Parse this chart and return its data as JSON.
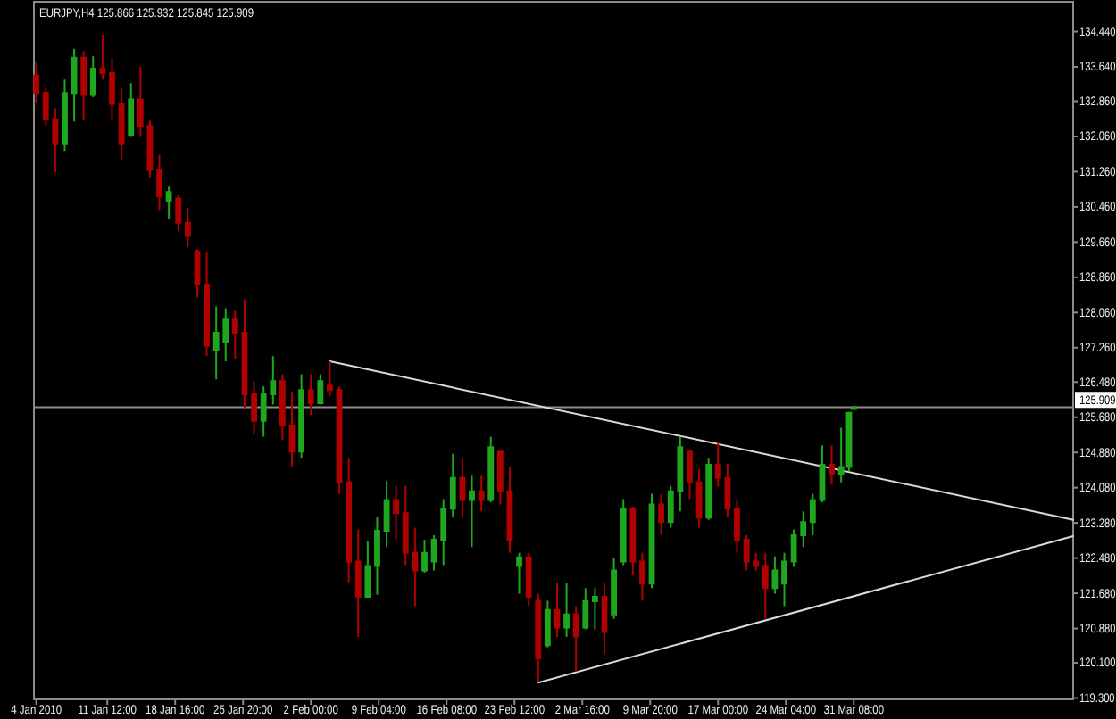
{
  "chart_data": {
    "type": "candlestick",
    "title": "EURJPY,H4 125.866 125.932 125.845 125.909",
    "x": [
      "2010-01-04",
      "2010-01-05",
      "2010-01-06",
      "2010-01-07",
      "2010-01-08",
      "2010-01-09",
      "2010-01-10",
      "2010-01-11",
      "2010-01-12",
      "2010-01-13",
      "2010-01-14",
      "2010-01-15",
      "2010-01-16",
      "2010-01-17",
      "2010-01-18",
      "2010-01-19",
      "2010-01-20",
      "2010-01-21",
      "2010-01-22",
      "2010-01-23",
      "2010-01-24",
      "2010-01-25",
      "2010-01-26",
      "2010-01-27",
      "2010-01-28",
      "2010-01-29",
      "2010-01-30",
      "2010-01-31",
      "2010-02-01",
      "2010-02-02",
      "2010-02-03",
      "2010-02-04",
      "2010-02-05",
      "2010-02-06",
      "2010-02-07",
      "2010-02-08",
      "2010-02-09",
      "2010-02-10",
      "2010-02-11",
      "2010-02-12",
      "2010-02-13",
      "2010-02-14",
      "2010-02-15",
      "2010-02-16",
      "2010-02-17",
      "2010-02-18",
      "2010-02-19",
      "2010-02-20",
      "2010-02-21",
      "2010-02-22",
      "2010-02-23",
      "2010-02-24",
      "2010-02-25",
      "2010-02-26",
      "2010-02-27",
      "2010-02-28",
      "2010-03-01",
      "2010-03-02",
      "2010-03-03",
      "2010-03-04",
      "2010-03-05",
      "2010-03-06",
      "2010-03-07",
      "2010-03-08",
      "2010-03-09",
      "2010-03-10",
      "2010-03-11",
      "2010-03-12",
      "2010-03-13",
      "2010-03-14",
      "2010-03-15",
      "2010-03-16",
      "2010-03-17",
      "2010-03-18",
      "2010-03-19",
      "2010-03-20",
      "2010-03-21",
      "2010-03-22",
      "2010-03-23",
      "2010-03-24",
      "2010-03-25",
      "2010-03-26",
      "2010-03-27",
      "2010-03-28",
      "2010-03-29",
      "2010-03-30",
      "2010-03-30T20:00",
      "2010-03-31T08:00"
    ],
    "ohlc": [
      [
        133.45,
        133.76,
        132.83,
        133.05
      ],
      [
        133.05,
        133.15,
        132.3,
        132.45
      ],
      [
        132.45,
        132.7,
        131.25,
        131.9
      ],
      [
        131.9,
        133.35,
        131.73,
        133.05
      ],
      [
        133.05,
        134.05,
        132.4,
        133.85
      ],
      [
        133.85,
        134.0,
        132.42,
        133.0
      ],
      [
        133.0,
        133.88,
        132.95,
        133.6
      ],
      [
        133.6,
        134.37,
        133.35,
        133.5
      ],
      [
        133.5,
        133.84,
        132.46,
        132.8
      ],
      [
        132.8,
        133.15,
        131.53,
        131.9
      ],
      [
        132.1,
        133.27,
        132.05,
        132.9
      ],
      [
        132.9,
        133.64,
        132.05,
        132.3
      ],
      [
        132.3,
        132.42,
        131.12,
        131.3
      ],
      [
        131.3,
        131.65,
        130.39,
        130.7
      ],
      [
        130.6,
        130.92,
        130.19,
        130.8
      ],
      [
        130.65,
        130.72,
        129.91,
        130.1
      ],
      [
        130.1,
        130.43,
        129.55,
        129.8
      ],
      [
        129.45,
        129.5,
        128.4,
        128.7
      ],
      [
        128.7,
        129.43,
        127.07,
        127.3
      ],
      [
        127.2,
        128.2,
        126.54,
        127.6
      ],
      [
        127.4,
        128.16,
        126.95,
        127.9
      ],
      [
        127.9,
        128.1,
        127.0,
        127.6
      ],
      [
        127.6,
        128.36,
        125.9,
        126.2
      ],
      [
        126.2,
        126.5,
        125.3,
        125.6
      ],
      [
        125.6,
        126.38,
        125.24,
        126.2
      ],
      [
        126.2,
        127.07,
        125.97,
        126.5
      ],
      [
        126.5,
        126.66,
        125.16,
        125.5
      ],
      [
        125.5,
        126.26,
        124.55,
        124.9
      ],
      [
        124.9,
        126.66,
        124.76,
        126.3
      ],
      [
        126.3,
        126.66,
        125.73,
        126.0
      ],
      [
        126.0,
        126.66,
        125.97,
        126.5
      ],
      [
        126.4,
        126.95,
        126.15,
        126.3
      ],
      [
        126.3,
        126.38,
        123.93,
        124.2
      ],
      [
        124.2,
        124.76,
        121.93,
        122.4
      ],
      [
        122.4,
        123.13,
        120.69,
        121.6
      ],
      [
        121.6,
        122.88,
        121.59,
        122.3
      ],
      [
        122.3,
        123.41,
        121.65,
        123.1
      ],
      [
        123.1,
        124.23,
        122.73,
        123.8
      ],
      [
        123.8,
        124.12,
        122.9,
        123.5
      ],
      [
        123.5,
        124.12,
        122.32,
        122.6
      ],
      [
        122.6,
        123.17,
        121.39,
        122.2
      ],
      [
        122.2,
        122.9,
        122.15,
        122.6
      ],
      [
        122.4,
        123.0,
        122.2,
        122.9
      ],
      [
        122.9,
        123.82,
        122.32,
        123.6
      ],
      [
        123.6,
        124.85,
        123.4,
        124.3
      ],
      [
        124.3,
        124.76,
        123.41,
        123.8
      ],
      [
        123.8,
        124.35,
        122.73,
        124.0
      ],
      [
        124.0,
        124.35,
        123.54,
        123.8
      ],
      [
        123.8,
        125.24,
        123.75,
        125.0
      ],
      [
        124.9,
        124.92,
        123.7,
        124.0
      ],
      [
        124.0,
        124.55,
        122.6,
        122.9
      ],
      [
        122.3,
        122.6,
        121.67,
        122.5
      ],
      [
        122.5,
        122.6,
        121.39,
        121.6
      ],
      [
        121.5,
        121.67,
        119.65,
        120.2
      ],
      [
        120.5,
        121.51,
        120.45,
        121.3
      ],
      [
        121.3,
        121.91,
        120.69,
        120.9
      ],
      [
        120.9,
        121.91,
        120.69,
        121.2
      ],
      [
        121.2,
        121.39,
        119.9,
        120.7
      ],
      [
        120.9,
        121.8,
        120.86,
        121.5
      ],
      [
        121.5,
        121.8,
        120.86,
        121.6
      ],
      [
        121.6,
        121.91,
        120.3,
        120.8
      ],
      [
        121.2,
        122.48,
        121.1,
        122.2
      ],
      [
        122.4,
        123.82,
        122.32,
        123.6
      ],
      [
        123.6,
        123.65,
        122.08,
        122.4
      ],
      [
        122.4,
        122.6,
        121.51,
        121.9
      ],
      [
        121.9,
        123.94,
        121.8,
        123.7
      ],
      [
        123.7,
        123.94,
        123.0,
        123.3
      ],
      [
        123.3,
        124.12,
        123.17,
        124.0
      ],
      [
        124.0,
        125.24,
        123.54,
        125.0
      ],
      [
        124.9,
        124.92,
        123.82,
        124.2
      ],
      [
        124.2,
        124.51,
        123.17,
        123.4
      ],
      [
        123.4,
        124.76,
        123.35,
        124.6
      ],
      [
        124.6,
        125.12,
        124.1,
        124.3
      ],
      [
        124.3,
        124.63,
        123.41,
        123.6
      ],
      [
        123.6,
        123.82,
        122.6,
        122.9
      ],
      [
        122.9,
        123.0,
        122.2,
        122.4
      ],
      [
        122.4,
        122.6,
        122.2,
        122.3
      ],
      [
        122.3,
        122.6,
        121.1,
        121.8
      ],
      [
        121.8,
        122.52,
        121.67,
        122.2
      ],
      [
        121.9,
        122.6,
        121.39,
        122.4
      ],
      [
        122.4,
        123.13,
        122.28,
        123.0
      ],
      [
        123.0,
        123.54,
        122.73,
        123.3
      ],
      [
        123.3,
        123.94,
        123.0,
        123.8
      ],
      [
        123.8,
        125.04,
        123.75,
        124.6
      ],
      [
        124.6,
        125.04,
        124.15,
        124.4
      ],
      [
        124.4,
        125.44,
        124.2,
        124.55
      ],
      [
        124.55,
        125.8,
        124.45,
        125.78
      ],
      [
        125.866,
        125.932,
        125.845,
        125.909
      ]
    ],
    "colors": [
      "#b00000",
      "#b00000",
      "#b00000",
      "#1fa71f",
      "#1fa71f",
      "#b00000",
      "#1fa71f",
      "#b00000",
      "#b00000",
      "#b00000",
      "#1fa71f",
      "#b00000",
      "#b00000",
      "#b00000",
      "#1fa71f",
      "#b00000",
      "#b00000",
      "#b00000",
      "#b00000",
      "#1fa71f",
      "#1fa71f",
      "#b00000",
      "#b00000",
      "#b00000",
      "#1fa71f",
      "#1fa71f",
      "#b00000",
      "#b00000",
      "#1fa71f",
      "#b00000",
      "#1fa71f",
      "#b00000",
      "#b00000",
      "#b00000",
      "#b00000",
      "#1fa71f",
      "#1fa71f",
      "#1fa71f",
      "#b00000",
      "#b00000",
      "#b00000",
      "#1fa71f",
      "#1fa71f",
      "#1fa71f",
      "#1fa71f",
      "#b00000",
      "#1fa71f",
      "#b00000",
      "#1fa71f",
      "#b00000",
      "#b00000",
      "#1fa71f",
      "#b00000",
      "#b00000",
      "#1fa71f",
      "#b00000",
      "#1fa71f",
      "#b00000",
      "#1fa71f",
      "#1fa71f",
      "#b00000",
      "#1fa71f",
      "#1fa71f",
      "#b00000",
      "#b00000",
      "#1fa71f",
      "#b00000",
      "#1fa71f",
      "#1fa71f",
      "#b00000",
      "#b00000",
      "#1fa71f",
      "#b00000",
      "#b00000",
      "#b00000",
      "#b00000",
      "#b00000",
      "#b00000",
      "#1fa71f",
      "#1fa71f",
      "#1fa71f",
      "#1fa71f",
      "#1fa71f",
      "#1fa71f",
      "#b00000",
      "#1fa71f",
      "#1fa71f",
      "#1fa71f"
    ],
    "series": [
      {
        "type": "line",
        "x": [
          "2010-02-04",
          "2010-04-23T12:00"
        ],
        "values": [
          126.95,
          123.35
        ],
        "color": "#d9d9d9"
      },
      {
        "type": "line",
        "x": [
          "2010-02-26",
          "2010-04-23T12:00"
        ],
        "values": [
          119.65,
          122.98
        ],
        "color": "#d9d9d9"
      }
    ],
    "ref_lines": [
      {
        "axis": "y",
        "value": 125.909,
        "label": "125.909",
        "color": "#8c8c8c"
      }
    ],
    "xlim": [
      "2010-01-03T18:00",
      "2010-04-23T12:00"
    ],
    "ylim": [
      119.27,
      135.12
    ],
    "xticks": [
      {
        "value": "2010-01-04T00:00",
        "label": "4 Jan 2010"
      },
      {
        "value": "2010-01-11T12:00",
        "label": "11 Jan 12:00"
      },
      {
        "value": "2010-01-18T16:00",
        "label": "18 Jan 16:00"
      },
      {
        "value": "2010-01-25T20:00",
        "label": "25 Jan 20:00"
      },
      {
        "value": "2010-02-02T00:00",
        "label": "2 Feb 00:00"
      },
      {
        "value": "2010-02-09T04:00",
        "label": "9 Feb 04:00"
      },
      {
        "value": "2010-02-16T08:00",
        "label": "16 Feb 08:00"
      },
      {
        "value": "2010-02-23T12:00",
        "label": "23 Feb 12:00"
      },
      {
        "value": "2010-03-02T16:00",
        "label": "2 Mar 16:00"
      },
      {
        "value": "2010-03-09T20:00",
        "label": "9 Mar 20:00"
      },
      {
        "value": "2010-03-17T00:00",
        "label": "17 Mar 00:00"
      },
      {
        "value": "2010-03-24T04:00",
        "label": "24 Mar 04:00"
      },
      {
        "value": "2010-03-31T08:00",
        "label": "31 Mar 08:00"
      }
    ],
    "yticks": [
      {
        "value": 134.44,
        "label": "134.440"
      },
      {
        "value": 133.64,
        "label": "133.640"
      },
      {
        "value": 132.86,
        "label": "132.860"
      },
      {
        "value": 132.06,
        "label": "132.060"
      },
      {
        "value": 131.26,
        "label": "131.260"
      },
      {
        "value": 130.46,
        "label": "130.460"
      },
      {
        "value": 129.66,
        "label": "129.660"
      },
      {
        "value": 128.86,
        "label": "128.860"
      },
      {
        "value": 128.06,
        "label": "128.060"
      },
      {
        "value": 127.26,
        "label": "127.260"
      },
      {
        "value": 126.48,
        "label": "126.480"
      },
      {
        "value": 125.68,
        "label": "125.680"
      },
      {
        "value": 124.88,
        "label": "124.880"
      },
      {
        "value": 124.08,
        "label": "124.080"
      },
      {
        "value": 123.28,
        "label": "123.280"
      },
      {
        "value": 122.48,
        "label": "122.480"
      },
      {
        "value": 121.68,
        "label": "121.680"
      },
      {
        "value": 120.88,
        "label": "120.880"
      },
      {
        "value": 120.1,
        "label": "120.100"
      },
      {
        "value": 119.3,
        "label": "119.300"
      }
    ]
  }
}
